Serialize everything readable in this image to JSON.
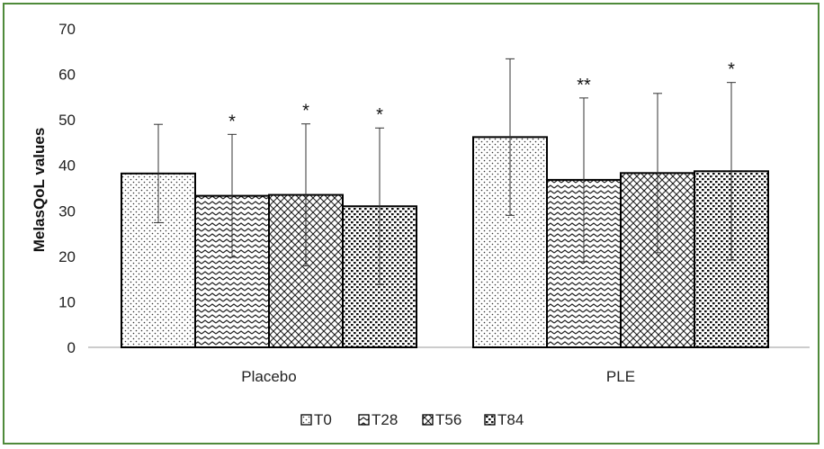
{
  "chart_data": {
    "type": "bar",
    "ylabel": "MelasQoL values",
    "ylim": [
      0,
      70
    ],
    "yticks": [
      0,
      10,
      20,
      30,
      40,
      50,
      60,
      70
    ],
    "categories": [
      "Placebo",
      "PLE"
    ],
    "legend_position": "bottom",
    "grid": false,
    "series": [
      {
        "name": "T0",
        "values": [
          38.2,
          46.2
        ],
        "error": [
          10.8,
          17.2
        ],
        "stars": [
          "",
          ""
        ],
        "pattern": "dots"
      },
      {
        "name": "T28",
        "values": [
          33.3,
          36.8
        ],
        "error": [
          13.5,
          18.0
        ],
        "stars": [
          "*",
          "**"
        ],
        "pattern": "hatch"
      },
      {
        "name": "T56",
        "values": [
          33.5,
          38.3
        ],
        "error": [
          15.6,
          17.5
        ],
        "stars": [
          "*",
          ""
        ],
        "pattern": "cross"
      },
      {
        "name": "T84",
        "values": [
          31.0,
          38.7
        ],
        "error": [
          17.2,
          19.5
        ],
        "stars": [
          "*",
          "*"
        ],
        "pattern": "blocks"
      }
    ]
  }
}
